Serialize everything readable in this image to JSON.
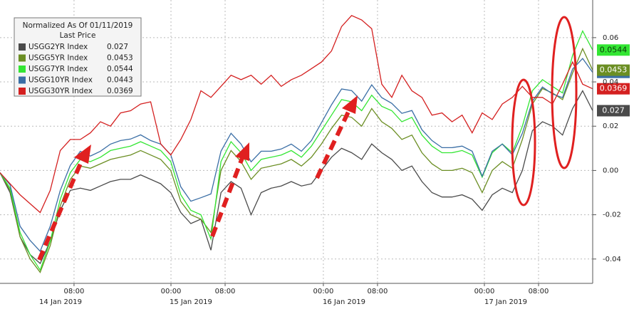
{
  "chart_data": {
    "type": "line",
    "legend_title": "Normalized As Of 01/11/2019",
    "legend_subtitle": "Last Price",
    "xlim": [
      0,
      59
    ],
    "xticks": [
      {
        "value": 7.37,
        "label": "08:00"
      },
      {
        "value": 17.02,
        "label": "00:00"
      },
      {
        "value": 22.41,
        "label": "08:00"
      },
      {
        "value": 32.19,
        "label": "00:00"
      },
      {
        "value": 37.58,
        "label": "08:00"
      },
      {
        "value": 48.22,
        "label": "00:00"
      },
      {
        "value": 53.61,
        "label": "08:00"
      }
    ],
    "x_day_labels": [
      {
        "value": 6.03,
        "label": "14 Jan 2019"
      },
      {
        "value": 19.0,
        "label": "15 Jan 2019"
      },
      {
        "value": 34.25,
        "label": "16 Jan 2019"
      },
      {
        "value": 50.35,
        "label": "17 Jan 2019"
      }
    ],
    "ylim": [
      -0.051,
      0.077
    ],
    "yticks": [
      0.06,
      0.04,
      0.02,
      {
        "value": 0,
        "label": "0.00"
      },
      -0.02,
      -0.04
    ],
    "grid": true,
    "series": [
      {
        "name": "USGG2YR Index",
        "color": "#4a4a4a",
        "values": [
          -0.001,
          -0.01,
          -0.03,
          -0.038,
          -0.042,
          -0.032,
          -0.018,
          -0.009,
          -0.008,
          -0.009,
          -0.007,
          -0.005,
          -0.004,
          -0.004,
          -0.002,
          -0.004,
          -0.006,
          -0.01,
          -0.019,
          -0.024,
          -0.022,
          -0.036,
          -0.01,
          -0.005,
          -0.008,
          -0.02,
          -0.01,
          -0.008,
          -0.007,
          -0.005,
          -0.007,
          -0.006,
          0.0,
          0.006,
          0.01,
          0.008,
          0.005,
          0.012,
          0.008,
          0.005,
          0.0,
          0.002,
          -0.005,
          -0.01,
          -0.012,
          -0.012,
          -0.011,
          -0.013,
          -0.018,
          -0.011,
          -0.008,
          -0.01,
          0.0,
          0.018,
          0.022,
          0.02,
          0.016,
          0.028,
          0.036,
          0.027
        ]
      },
      {
        "name": "USGG5YR Index",
        "color": "#6b8e23",
        "values": [
          -0.001,
          -0.009,
          -0.03,
          -0.04,
          -0.046,
          -0.034,
          -0.016,
          -0.004,
          0.002,
          0.001,
          0.003,
          0.005,
          0.006,
          0.007,
          0.009,
          0.007,
          0.005,
          0.0,
          -0.014,
          -0.02,
          -0.022,
          -0.028,
          0.0,
          0.009,
          0.004,
          -0.004,
          0.001,
          0.002,
          0.003,
          0.005,
          0.002,
          0.006,
          0.012,
          0.019,
          0.025,
          0.024,
          0.02,
          0.028,
          0.022,
          0.019,
          0.014,
          0.016,
          0.008,
          0.003,
          0.0,
          0.0,
          0.001,
          -0.001,
          -0.01,
          0.0,
          0.004,
          0.001,
          0.014,
          0.03,
          0.037,
          0.035,
          0.032,
          0.044,
          0.055,
          0.0453
        ]
      },
      {
        "name": "USGG7YR Index",
        "color": "#33e633",
        "values": [
          -0.001,
          -0.008,
          -0.028,
          -0.038,
          -0.045,
          -0.032,
          -0.013,
          -0.001,
          0.005,
          0.004,
          0.006,
          0.009,
          0.01,
          0.011,
          0.013,
          0.011,
          0.009,
          0.004,
          -0.011,
          -0.018,
          -0.02,
          -0.031,
          0.004,
          0.013,
          0.008,
          0.0,
          0.005,
          0.006,
          0.007,
          0.009,
          0.006,
          0.011,
          0.018,
          0.025,
          0.032,
          0.031,
          0.027,
          0.034,
          0.029,
          0.027,
          0.022,
          0.024,
          0.016,
          0.011,
          0.008,
          0.008,
          0.009,
          0.007,
          -0.003,
          0.008,
          0.012,
          0.008,
          0.02,
          0.036,
          0.041,
          0.038,
          0.035,
          0.052,
          0.063,
          0.0544
        ]
      },
      {
        "name": "USGG10YR Index",
        "color": "#3a6ea5",
        "values": [
          -0.001,
          -0.0065,
          -0.0252,
          -0.0316,
          -0.0365,
          -0.0252,
          -0.009,
          0.0023,
          0.0087,
          0.0065,
          0.0087,
          0.0119,
          0.0135,
          0.0142,
          0.0161,
          0.0135,
          0.0119,
          0.0071,
          -0.0074,
          -0.0139,
          -0.0123,
          -0.0106,
          0.0087,
          0.0168,
          0.0119,
          0.0039,
          0.0087,
          0.0087,
          0.0097,
          0.0119,
          0.0087,
          0.0135,
          0.0216,
          0.0297,
          0.0368,
          0.0361,
          0.0313,
          0.0387,
          0.0329,
          0.0303,
          0.0258,
          0.0271,
          0.0184,
          0.0135,
          0.0103,
          0.0103,
          0.011,
          0.0087,
          -0.0026,
          0.0087,
          0.0119,
          0.0071,
          0.0168,
          0.0313,
          0.0377,
          0.0345,
          0.0329,
          0.0458,
          0.0506,
          0.0443
        ]
      },
      {
        "name": "USGG30YR Index",
        "color": "#d42020",
        "values": [
          -0.001,
          -0.006,
          -0.011,
          -0.015,
          -0.019,
          -0.009,
          0.009,
          0.014,
          0.014,
          0.017,
          0.022,
          0.02,
          0.026,
          0.027,
          0.03,
          0.031,
          0.012,
          0.007,
          0.014,
          0.023,
          0.036,
          0.033,
          0.038,
          0.043,
          0.041,
          0.043,
          0.039,
          0.043,
          0.038,
          0.041,
          0.043,
          0.046,
          0.049,
          0.054,
          0.065,
          0.07,
          0.068,
          0.064,
          0.039,
          0.033,
          0.043,
          0.036,
          0.033,
          0.025,
          0.026,
          0.022,
          0.025,
          0.017,
          0.026,
          0.023,
          0.03,
          0.033,
          0.038,
          0.033,
          0.033,
          0.03,
          0.039,
          0.049,
          0.039,
          0.0369
        ]
      }
    ]
  }
}
